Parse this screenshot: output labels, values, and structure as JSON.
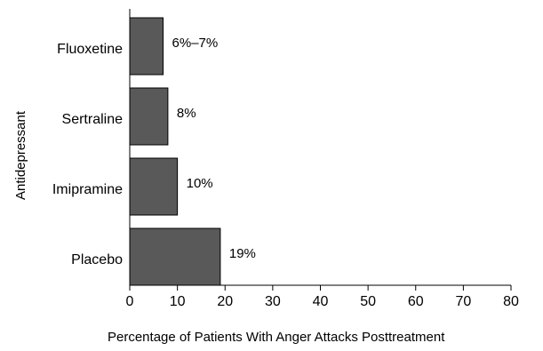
{
  "chart_data": {
    "type": "bar",
    "orientation": "horizontal",
    "title": "",
    "xlabel": "Percentage of Patients With Anger Attacks Posttreatment",
    "ylabel": "Antidepressant",
    "xlim": [
      0,
      80
    ],
    "x_ticks": [
      "0",
      "10",
      "20",
      "30",
      "40",
      "50",
      "60",
      "70",
      "80"
    ],
    "grid": false,
    "legend": "none",
    "bar_color": "#595959",
    "categories": [
      "Fluoxetine",
      "Sertraline",
      "Imipramine",
      "Placebo"
    ],
    "values": [
      7,
      8,
      10,
      19
    ],
    "data_labels": [
      "6%–7%",
      "8%",
      "10%",
      "19%"
    ]
  }
}
